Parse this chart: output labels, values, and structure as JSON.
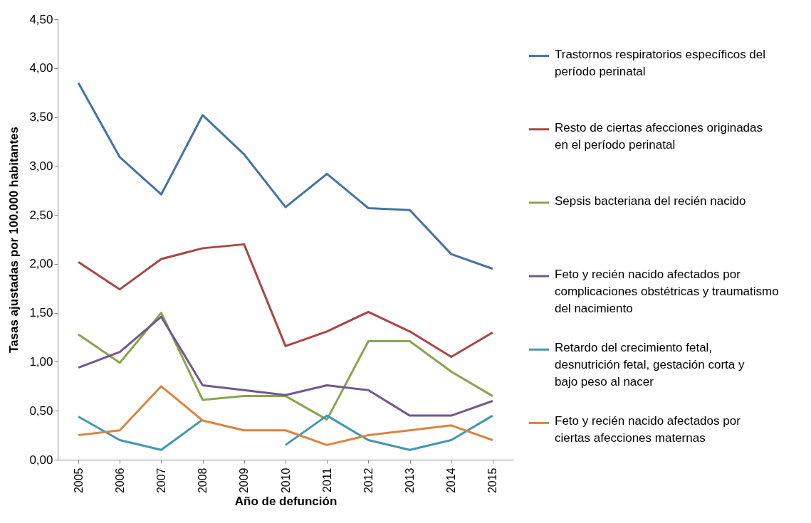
{
  "chart_data": {
    "type": "line",
    "xlabel": "Año de defunción",
    "ylabel": "Tasas ajustadas por 100.000 habitantes",
    "categories": [
      "2005",
      "2006",
      "2007",
      "2008",
      "2009",
      "2010",
      "2011",
      "2012",
      "2013",
      "2014",
      "2015"
    ],
    "ylim": [
      0,
      4.5
    ],
    "yticks": [
      {
        "value": 0,
        "label": "0,00"
      },
      {
        "value": 0.5,
        "label": "0,50"
      },
      {
        "value": 1,
        "label": "1,00"
      },
      {
        "value": 1.5,
        "label": "1,50"
      },
      {
        "value": 2,
        "label": "2,00"
      },
      {
        "value": 2.5,
        "label": "2,50"
      },
      {
        "value": 3,
        "label": "3,00"
      },
      {
        "value": 3.5,
        "label": "3,50"
      },
      {
        "value": 4,
        "label": "4,00"
      },
      {
        "value": 4.5,
        "label": "4,50"
      }
    ],
    "grid": false,
    "legend": "right",
    "marker": "none",
    "line_style": "solid",
    "series": [
      {
        "name": "Trastornos respiratorios específicos del período perinatal",
        "color": "#4572a7",
        "values": [
          3.85,
          3.09,
          2.71,
          3.52,
          3.12,
          2.58,
          2.92,
          2.57,
          2.55,
          2.1,
          1.95
        ]
      },
      {
        "name": "Resto de ciertas afecciones originadas en el período perinatal",
        "color": "#aa4643",
        "values": [
          2.02,
          1.74,
          2.05,
          2.16,
          2.2,
          1.16,
          1.31,
          1.51,
          1.31,
          1.05,
          1.3
        ]
      },
      {
        "name": "Sepsis bacteriana del recién nacido",
        "color": "#89a54e",
        "values": [
          1.28,
          0.99,
          1.5,
          0.61,
          0.65,
          0.65,
          0.41,
          1.21,
          1.21,
          0.9,
          0.65
        ]
      },
      {
        "name": "Feto y recién nacido afectados por complicaciones obstétricas y traumatismo del nacimiento",
        "color": "#71588f",
        "values": [
          0.94,
          1.1,
          1.46,
          0.76,
          0.71,
          0.66,
          0.76,
          0.71,
          0.45,
          0.45,
          0.6
        ]
      },
      {
        "name": "Retardo del crecimiento fetal, desnutrición fetal, gestación corta y bajo peso al nacer",
        "color": "#4198af",
        "values": [
          0.44,
          0.2,
          0.1,
          0.41,
          null,
          0.15,
          0.45,
          0.2,
          0.1,
          0.2,
          0.45
        ]
      },
      {
        "name": "Feto y recién nacido afectados por ciertas afecciones maternas",
        "color": "#db843d",
        "values": [
          0.25,
          0.3,
          0.75,
          0.4,
          0.3,
          0.3,
          0.15,
          0.25,
          0.3,
          0.35,
          0.2
        ]
      }
    ]
  }
}
